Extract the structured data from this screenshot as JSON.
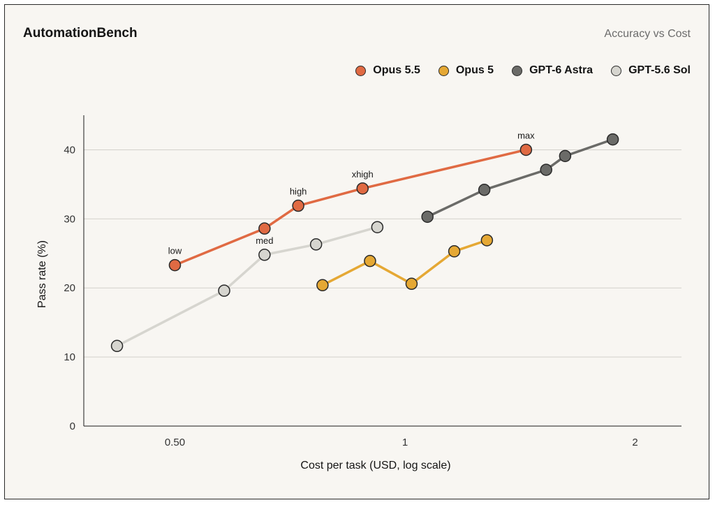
{
  "header": {
    "title": "AutomationBench",
    "subtitle": "Accuracy vs Cost"
  },
  "chart_data": {
    "type": "line",
    "title": "AutomationBench",
    "subtitle": "Accuracy vs Cost",
    "xlabel": "Cost per task (USD, log scale)",
    "ylabel": "Pass rate (%)",
    "x_scale": "log",
    "xlim": [
      0.38,
      2.3
    ],
    "ylim": [
      0,
      45
    ],
    "x_ticks": [
      0.5,
      1,
      2
    ],
    "x_tick_labels": [
      "0.50",
      "1",
      "2"
    ],
    "y_ticks": [
      0,
      10,
      20,
      30,
      40
    ],
    "y_tick_labels": [
      "0",
      "10",
      "20",
      "30",
      "40"
    ],
    "grid": "horizontal",
    "legend_position": "top-right",
    "series": [
      {
        "name": "Opus 5.5",
        "color": "#e06a43",
        "points": [
          {
            "x": 0.5,
            "y": 23.3,
            "label": "low"
          },
          {
            "x": 0.655,
            "y": 28.6,
            "label": ""
          },
          {
            "x": 0.725,
            "y": 31.9,
            "label": "high"
          },
          {
            "x": 0.88,
            "y": 34.4,
            "label": "xhigh"
          },
          {
            "x": 1.44,
            "y": 40.0,
            "label": "max"
          }
        ]
      },
      {
        "name": "Opus 5",
        "color": "#e5a834",
        "points": [
          {
            "x": 0.78,
            "y": 20.4,
            "label": ""
          },
          {
            "x": 0.9,
            "y": 23.9,
            "label": ""
          },
          {
            "x": 1.02,
            "y": 20.6,
            "label": ""
          },
          {
            "x": 1.16,
            "y": 25.3,
            "label": ""
          },
          {
            "x": 1.28,
            "y": 26.9,
            "label": ""
          }
        ]
      },
      {
        "name": "GPT-6 Astra",
        "color": "#6b6b68",
        "points": [
          {
            "x": 1.07,
            "y": 30.3,
            "label": ""
          },
          {
            "x": 1.27,
            "y": 34.2,
            "label": ""
          },
          {
            "x": 1.53,
            "y": 37.1,
            "label": ""
          },
          {
            "x": 1.62,
            "y": 39.1,
            "label": ""
          },
          {
            "x": 1.87,
            "y": 41.5,
            "label": ""
          }
        ]
      },
      {
        "name": "GPT-5.6 Sol",
        "color": "#d6d5cf",
        "points": [
          {
            "x": 0.42,
            "y": 11.6,
            "label": ""
          },
          {
            "x": 0.58,
            "y": 19.6,
            "label": ""
          },
          {
            "x": 0.655,
            "y": 24.8,
            "label": "med"
          },
          {
            "x": 0.765,
            "y": 26.3,
            "label": ""
          },
          {
            "x": 0.92,
            "y": 28.8,
            "label": ""
          }
        ]
      }
    ]
  }
}
